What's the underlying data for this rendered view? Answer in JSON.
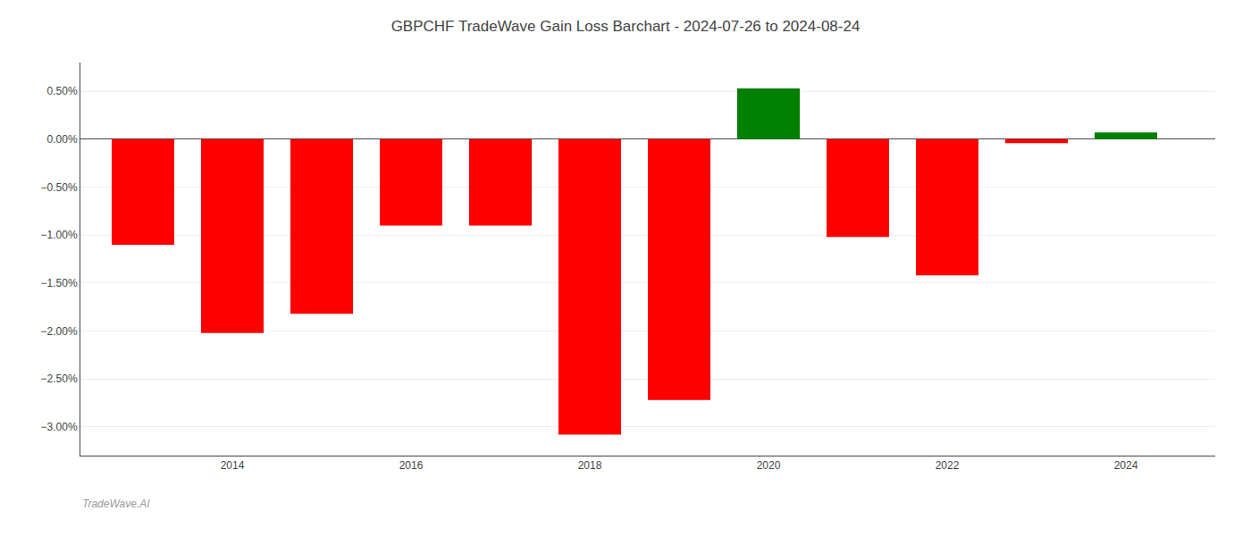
{
  "chart_data": {
    "type": "bar",
    "title": "GBPCHF TradeWave Gain Loss Barchart - 2024-07-26 to 2024-08-24",
    "annotations": [
      "TradeWave.AI"
    ],
    "x": [
      2013,
      2014,
      2015,
      2016,
      2017,
      2018,
      2019,
      2020,
      2021,
      2022,
      2023,
      2024
    ],
    "values": [
      -1.1,
      -2.02,
      -1.82,
      -0.9,
      -0.9,
      -3.08,
      -2.72,
      0.53,
      -1.02,
      -1.42,
      -0.04,
      0.07
    ],
    "colors": [
      "#ff0000",
      "#ff0000",
      "#ff0000",
      "#ff0000",
      "#ff0000",
      "#ff0000",
      "#ff0000",
      "#008000",
      "#ff0000",
      "#ff0000",
      "#ff0000",
      "#008000"
    ],
    "xlim": [
      2012.3,
      2025.0
    ],
    "xticks": [
      2014,
      2016,
      2018,
      2020,
      2022,
      2024
    ],
    "ylim": [
      -3.3,
      0.8
    ],
    "yticks": [
      {
        "value": 0.5,
        "label": "0.50%"
      },
      {
        "value": 0.0,
        "label": "0.00%"
      },
      {
        "value": -0.5,
        "label": "−0.50%"
      },
      {
        "value": -1.0,
        "label": "−1.00%"
      },
      {
        "value": -1.5,
        "label": "−1.50%"
      },
      {
        "value": -2.0,
        "label": "−2.00%"
      },
      {
        "value": -2.5,
        "label": "−2.50%"
      },
      {
        "value": -3.0,
        "label": "−3.00%"
      }
    ],
    "grid": true
  }
}
